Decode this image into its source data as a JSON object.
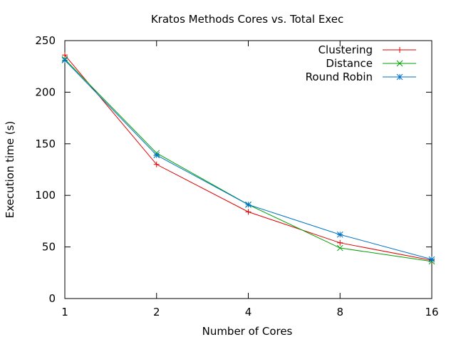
{
  "chart_data": {
    "type": "line",
    "title": "Kratos Methods Cores vs. Total Exec",
    "xlabel": "Number of Cores",
    "ylabel": "Execution time (s)",
    "x_scale": "log2",
    "categories": [
      "1",
      "2",
      "4",
      "8",
      "16"
    ],
    "x": [
      1,
      2,
      4,
      8,
      16
    ],
    "ylim": [
      0,
      250
    ],
    "yticks": [
      "0",
      "50",
      "100",
      "150",
      "200",
      "250"
    ],
    "grid": false,
    "legend_position": "top-right",
    "series": [
      {
        "name": "Clustering",
        "color": "#e00000",
        "marker": "plus",
        "values": [
          236,
          130,
          84,
          54,
          37
        ]
      },
      {
        "name": "Distance",
        "color": "#00a000",
        "marker": "cross",
        "values": [
          232,
          141,
          91,
          49,
          36
        ]
      },
      {
        "name": "Round Robin",
        "color": "#0072c6",
        "marker": "star",
        "values": [
          231,
          139,
          91,
          62,
          38
        ]
      }
    ]
  }
}
